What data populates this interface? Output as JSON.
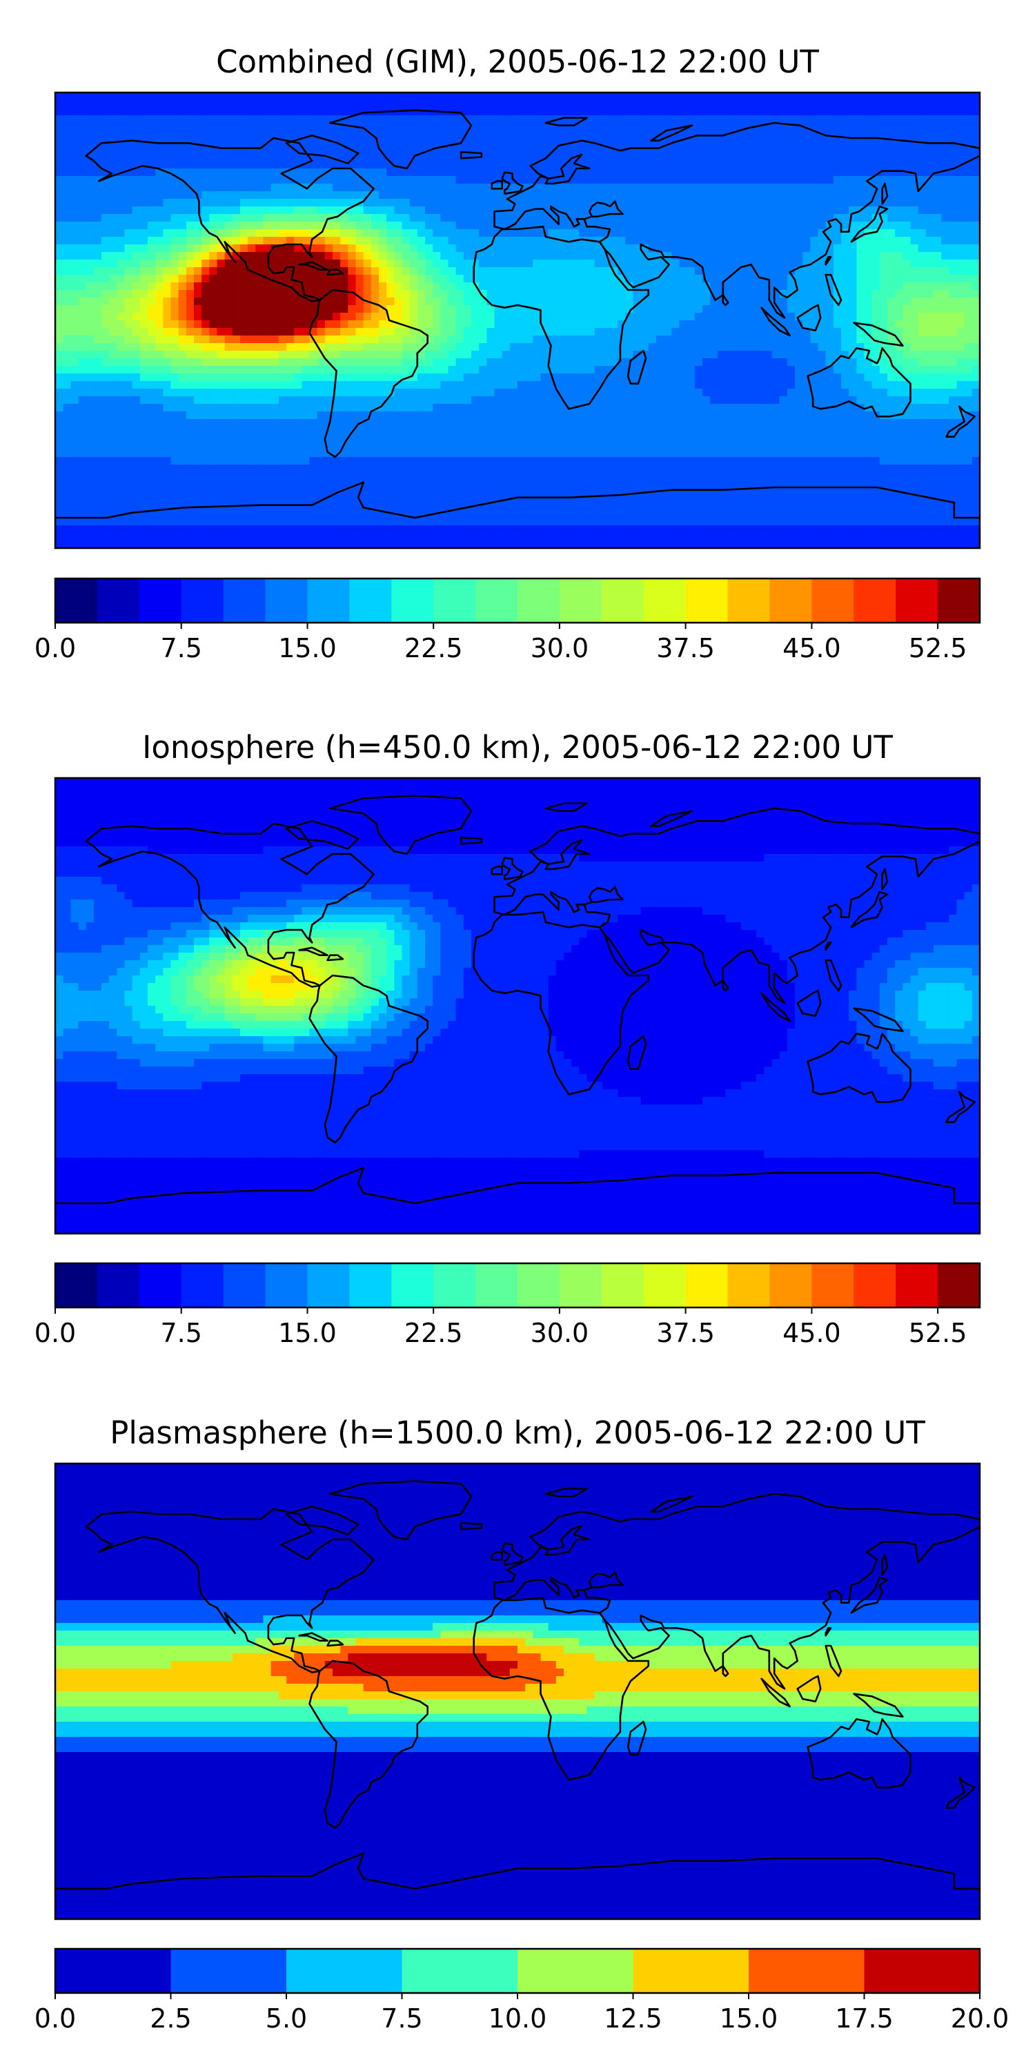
{
  "chart_data": [
    {
      "type": "heatmap",
      "title": "Combined (GIM), 2005-06-12 22:00 UT",
      "xlabel": "",
      "ylabel": "",
      "colorbar": {
        "ticks": [
          "0.0",
          "7.5",
          "15.0",
          "22.5",
          "30.0",
          "37.5",
          "45.0",
          "52.5"
        ],
        "range": [
          0,
          55
        ],
        "levels": 22,
        "colors": [
          "#00007f",
          "#0000bb",
          "#0000f6",
          "#0021ff",
          "#004dff",
          "#0079ff",
          "#00a5ff",
          "#00d1ff",
          "#1cffda",
          "#3cffba",
          "#5dff9a",
          "#7dff79",
          "#9aff5d",
          "#baff3c",
          "#daff1c",
          "#fff000",
          "#ffbe00",
          "#ff9400",
          "#ff6400",
          "#ff3500",
          "#e00000",
          "#8b0000"
        ]
      },
      "max_value": 53,
      "max_location": "eastern Pacific, west of Central America",
      "features": [
        {
          "region": "Central America / Caribbean",
          "level": "45-53"
        },
        {
          "region": "eastern tropical Pacific",
          "level": "30-40"
        },
        {
          "region": "South America / tropical Atlantic",
          "level": "20-30"
        },
        {
          "region": "Africa / Indian Ocean",
          "level": "10-20"
        },
        {
          "region": "western Pacific",
          "level": "20-28"
        },
        {
          "region": "high latitudes",
          "level": "3-10"
        }
      ]
    },
    {
      "type": "heatmap",
      "title": "Ionosphere  (h=450.0 km), 2005-06-12 22:00 UT",
      "xlabel": "",
      "ylabel": "",
      "colorbar": {
        "ticks": [
          "0.0",
          "7.5",
          "15.0",
          "22.5",
          "30.0",
          "37.5",
          "45.0",
          "52.5"
        ],
        "range": [
          0,
          55
        ],
        "levels": 22,
        "colors": [
          "#00007f",
          "#0000bb",
          "#0000f6",
          "#0021ff",
          "#004dff",
          "#0079ff",
          "#00a5ff",
          "#00d1ff",
          "#1cffda",
          "#3cffba",
          "#5dff9a",
          "#7dff79",
          "#9aff5d",
          "#baff3c",
          "#daff1c",
          "#fff000",
          "#ffbe00",
          "#ff9400",
          "#ff6400",
          "#ff3500",
          "#e00000",
          "#8b0000"
        ]
      },
      "max_value": 36,
      "max_location": "eastern Pacific, west of Central America",
      "features": [
        {
          "region": "eastern tropical Pacific",
          "level": "30-36"
        },
        {
          "region": "South America / Caribbean",
          "level": "20-30"
        },
        {
          "region": "Africa / Indian Ocean",
          "level": "2-7"
        },
        {
          "region": "western Pacific",
          "level": "15-22"
        },
        {
          "region": "high latitudes",
          "level": "5-10"
        }
      ]
    },
    {
      "type": "heatmap",
      "title": "Plasmasphere (h=1500.0 km), 2005-06-12 22:00 UT",
      "xlabel": "",
      "ylabel": "",
      "colorbar": {
        "ticks": [
          "0.0",
          "2.5",
          "5.0",
          "7.5",
          "10.0",
          "12.5",
          "15.0",
          "17.5",
          "20.0"
        ],
        "range": [
          0,
          20
        ],
        "levels": 8,
        "colors": [
          "#0000cc",
          "#0055ff",
          "#00c6ff",
          "#3cffbd",
          "#a5ff52",
          "#ffd000",
          "#ff5a00",
          "#c40000"
        ]
      },
      "max_value": 18,
      "max_location": "Caribbean / northern South America",
      "features": [
        {
          "region": "Caribbean / northern South America",
          "level": "17.5-20"
        },
        {
          "region": "tropical Atlantic / West Africa",
          "level": "15-17.5"
        },
        {
          "region": "equatorial band",
          "level": "10-15"
        },
        {
          "region": "mid latitudes",
          "level": "5-10"
        },
        {
          "region": "high latitudes",
          "level": "0-2.5"
        }
      ]
    }
  ]
}
